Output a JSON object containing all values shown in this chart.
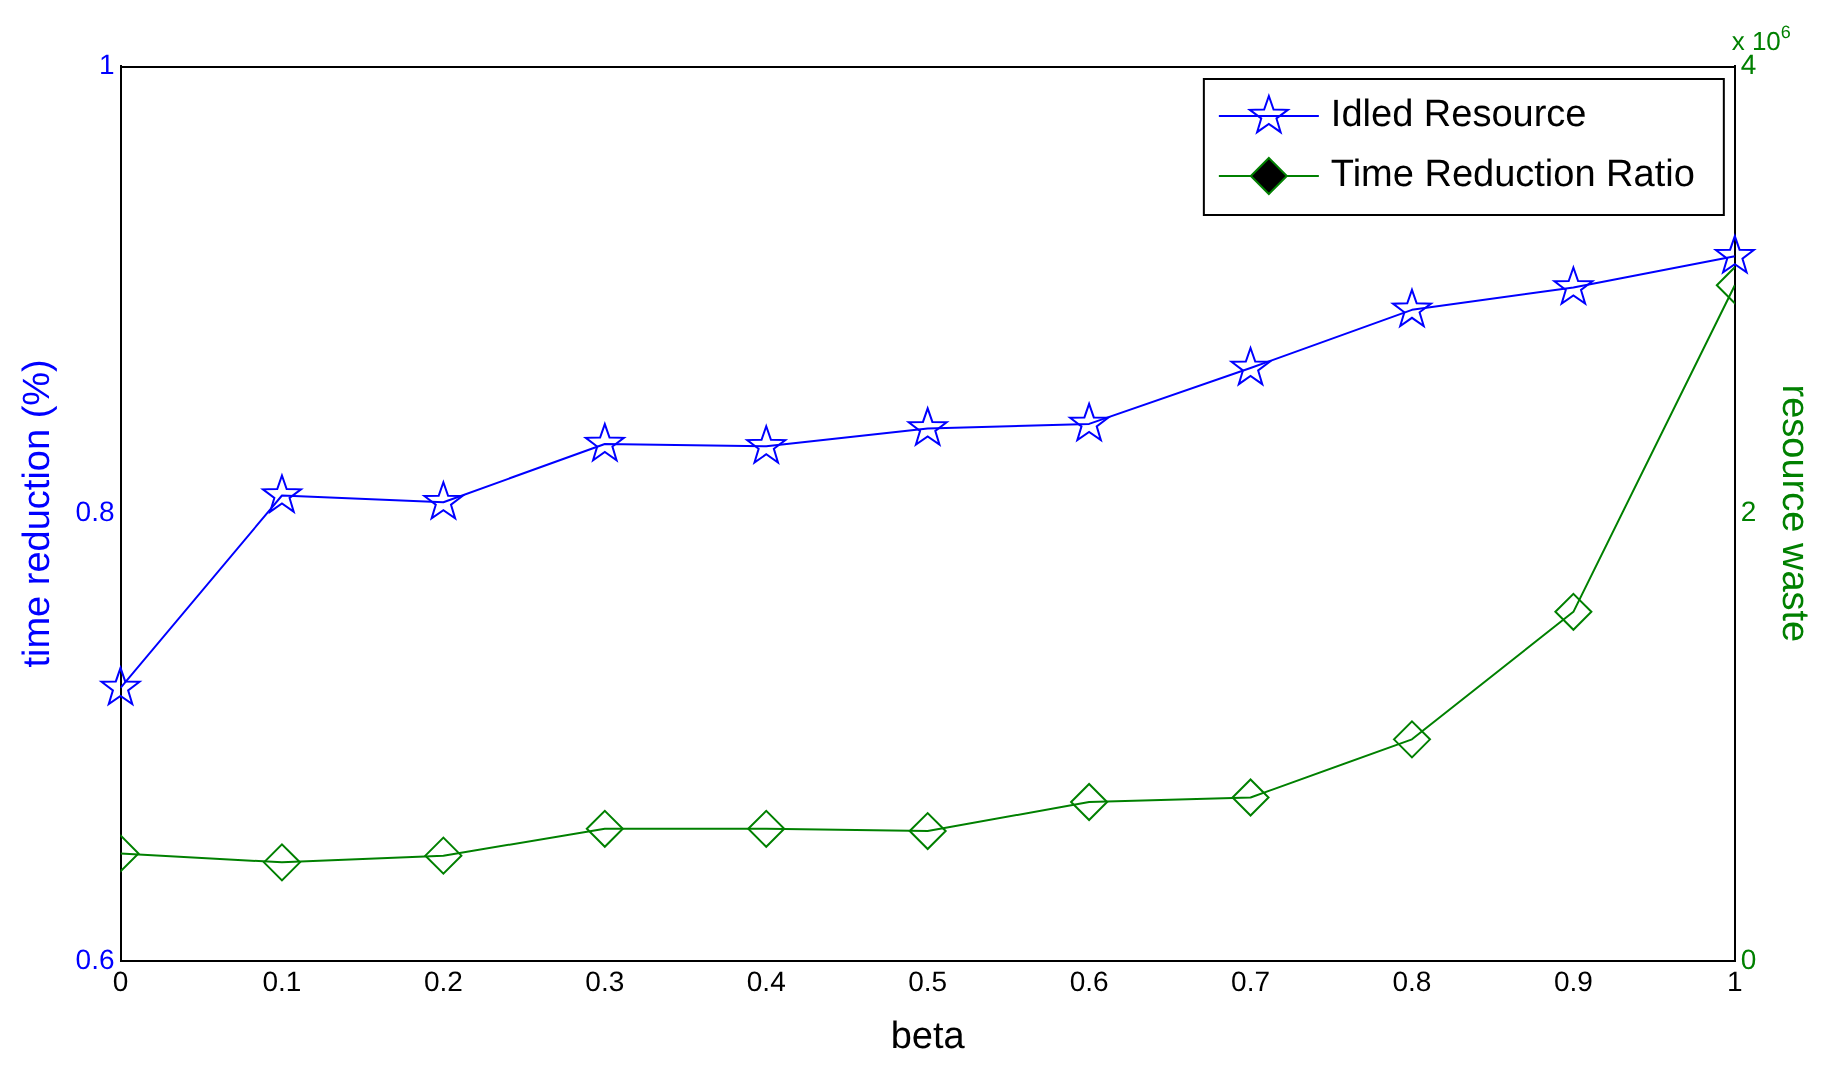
{
  "chart_data": {
    "type": "line",
    "xlabel": "beta",
    "ylabel": "time reduction (%)",
    "y2label": "resource waste",
    "x": [
      0,
      0.1,
      0.2,
      0.3,
      0.4,
      0.5,
      0.6,
      0.7,
      0.8,
      0.9,
      1
    ],
    "series": [
      {
        "name": "Idled Resource",
        "color": "#0000ff",
        "marker": "star",
        "values": [
          0.722,
          0.808,
          0.805,
          0.831,
          0.83,
          0.838,
          0.84,
          0.865,
          0.891,
          0.901,
          0.915
        ]
      },
      {
        "name": "Time Reduction Ratio",
        "color": "#008000",
        "marker": "diamond",
        "axis": "y2",
        "values": [
          0.48,
          0.44,
          0.47,
          0.59,
          0.59,
          0.58,
          0.71,
          0.73,
          0.99,
          1.56,
          3.02
        ]
      }
    ],
    "xlim": [
      0,
      1
    ],
    "xticks": [
      0,
      0.1,
      0.2,
      0.3,
      0.4,
      0.5,
      0.6,
      0.7,
      0.8,
      0.9,
      1
    ],
    "ylim": [
      0.6,
      1
    ],
    "yticks": [
      0.6,
      0.8,
      1
    ],
    "y2lim": [
      0,
      4
    ],
    "y2ticks": [
      0,
      2,
      4
    ],
    "annotations": [
      "x 10$^{6}$"
    ],
    "grid": false,
    "legend": "top right"
  }
}
